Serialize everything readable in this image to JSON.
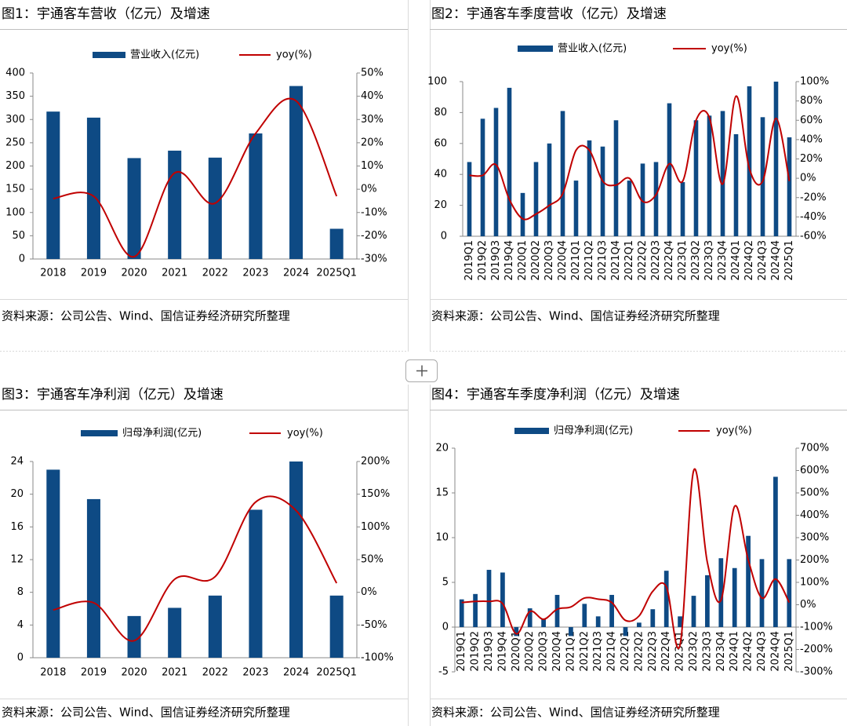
{
  "chart_data": [
    {
      "type": "bar_line",
      "title": "图1：宇通客车营收（亿元）及增速",
      "source": "资料来源：公司公告、Wind、国信证券经济研究所整理",
      "categories": [
        "2018",
        "2019",
        "2020",
        "2021",
        "2022",
        "2023",
        "2024",
        "2025Q1"
      ],
      "series": [
        {
          "name": "营业收入(亿元)",
          "type": "bar",
          "color": "#0e4a84",
          "values": [
            317,
            304,
            217,
            233,
            218,
            270,
            372,
            65
          ]
        },
        {
          "name": "yoy(%)",
          "type": "line",
          "axis": "y2",
          "color": "#c00000",
          "values": [
            -4,
            -3,
            -29,
            7,
            -6,
            24,
            38,
            -3
          ]
        }
      ],
      "ylim": [
        0,
        400
      ],
      "yticks": [
        0,
        50,
        100,
        150,
        200,
        250,
        300,
        350,
        400
      ],
      "y2lim": [
        -30,
        50
      ],
      "y2ticks": [
        {
          "value": -30,
          "label": "-30%"
        },
        {
          "value": -20,
          "label": "-20%"
        },
        {
          "value": -10,
          "label": "-10%"
        },
        {
          "value": 0,
          "label": "0%"
        },
        {
          "value": 10,
          "label": "10%"
        },
        {
          "value": 20,
          "label": "20%"
        },
        {
          "value": 30,
          "label": "30%"
        },
        {
          "value": 40,
          "label": "40%"
        },
        {
          "value": 50,
          "label": "50%"
        }
      ]
    },
    {
      "type": "bar_line",
      "title": "图2：宇通客车季度营收（亿元）及增速",
      "source": "资料来源：公司公告、Wind、国信证券经济研究所整理",
      "categories": [
        "2019Q1",
        "2019Q2",
        "2019Q3",
        "2019Q4",
        "2020Q1",
        "2020Q2",
        "2020Q3",
        "2020Q4",
        "2021Q1",
        "2021Q2",
        "2021Q3",
        "2021Q4",
        "2022Q1",
        "2022Q2",
        "2022Q3",
        "2022Q4",
        "2023Q1",
        "2023Q2",
        "2023Q3",
        "2023Q4",
        "2024Q1",
        "2024Q2",
        "2024Q3",
        "2024Q4",
        "2025Q1"
      ],
      "series": [
        {
          "name": "营业收入(亿元)",
          "type": "bar",
          "color": "#0e4a84",
          "values": [
            48,
            76,
            83,
            96,
            28,
            48,
            60,
            81,
            36,
            62,
            58,
            75,
            36,
            47,
            48,
            86,
            35,
            75,
            78,
            81,
            66,
            97,
            77,
            100,
            64
          ]
        },
        {
          "name": "yoy(%)",
          "type": "line",
          "axis": "y2",
          "color": "#c00000",
          "values": [
            3,
            3,
            14,
            -22,
            -42,
            -37,
            -28,
            -16,
            29,
            29,
            -3,
            -7,
            0,
            -24,
            -17,
            15,
            -3,
            60,
            63,
            -6,
            85,
            10,
            -3,
            62,
            -3
          ]
        }
      ],
      "ylim": [
        0,
        100
      ],
      "yticks": [
        0,
        20,
        40,
        60,
        80,
        100
      ],
      "y2lim": [
        -60,
        100
      ],
      "y2ticks": [
        {
          "value": -60,
          "label": "-60%"
        },
        {
          "value": -40,
          "label": "-40%"
        },
        {
          "value": -20,
          "label": "-20%"
        },
        {
          "value": 0,
          "label": "0%"
        },
        {
          "value": 20,
          "label": "20%"
        },
        {
          "value": 40,
          "label": "40%"
        },
        {
          "value": 60,
          "label": "60%"
        },
        {
          "value": 80,
          "label": "80%"
        },
        {
          "value": 100,
          "label": "100%"
        }
      ]
    },
    {
      "type": "bar_line",
      "title": "图3：宇通客车净利润（亿元）及增速",
      "source": "资料来源：公司公告、Wind、国信证券经济研究所整理",
      "categories": [
        "2018",
        "2019",
        "2020",
        "2021",
        "2022",
        "2023",
        "2024",
        "2025Q1"
      ],
      "series": [
        {
          "name": "归母净利润(亿元)",
          "type": "bar",
          "color": "#0e4a84",
          "values": [
            23,
            19.4,
            5.1,
            6.1,
            7.6,
            18.1,
            24,
            7.6
          ]
        },
        {
          "name": "yoy(%)",
          "type": "line",
          "axis": "y2",
          "color": "#c00000",
          "values": [
            -27,
            -16,
            -74,
            20,
            24,
            138,
            125,
            14
          ]
        }
      ],
      "ylim": [
        0,
        24
      ],
      "yticks": [
        0,
        4,
        8,
        12,
        16,
        20,
        24
      ],
      "y2lim": [
        -100,
        200
      ],
      "y2ticks": [
        {
          "value": -100,
          "label": "-100%"
        },
        {
          "value": -50,
          "label": "-50%"
        },
        {
          "value": 0,
          "label": "0%"
        },
        {
          "value": 50,
          "label": "50%"
        },
        {
          "value": 100,
          "label": "100%"
        },
        {
          "value": 150,
          "label": "150%"
        },
        {
          "value": 200,
          "label": "200%"
        }
      ]
    },
    {
      "type": "bar_line",
      "title": "图4：宇通客车季度净利润（亿元）及增速",
      "source": "资料来源：公司公告、Wind、国信证券经济研究所整理",
      "categories": [
        "2019Q1",
        "2019Q2",
        "2019Q3",
        "2019Q4",
        "2020Q1",
        "2020Q2",
        "2020Q3",
        "2020Q4",
        "2021Q1",
        "2021Q2",
        "2021Q3",
        "2021Q4",
        "2022Q1",
        "2022Q2",
        "2022Q3",
        "2022Q4",
        "2023Q1",
        "2023Q2",
        "2023Q3",
        "2023Q4",
        "2024Q1",
        "2024Q2",
        "2024Q3",
        "2024Q4",
        "2025Q1"
      ],
      "series": [
        {
          "name": "归母净利润(亿元)",
          "type": "bar",
          "color": "#0e4a84",
          "values": [
            3.1,
            3.7,
            6.4,
            6.1,
            -1.0,
            2.1,
            0.9,
            3.6,
            -1.0,
            2.6,
            1.2,
            3.6,
            -1.0,
            0.5,
            2.0,
            6.3,
            1.2,
            3.5,
            5.8,
            7.7,
            6.6,
            10.2,
            7.6,
            16.8,
            7.6
          ]
        },
        {
          "name": "yoy(%)",
          "type": "line",
          "axis": "y2",
          "color": "#c00000",
          "values": [
            10,
            15,
            15,
            5,
            -130,
            -30,
            -65,
            -20,
            -10,
            30,
            25,
            10,
            -70,
            -50,
            60,
            80,
            -180,
            600,
            190,
            20,
            440,
            200,
            30,
            115,
            10
          ]
        }
      ],
      "ylim": [
        -5,
        20
      ],
      "yticks": [
        -5,
        0,
        5,
        10,
        15,
        20
      ],
      "y2lim": [
        -300,
        700
      ],
      "y2ticks": [
        {
          "value": -300,
          "label": "-300%"
        },
        {
          "value": -200,
          "label": "-200%"
        },
        {
          "value": -100,
          "label": "-100%"
        },
        {
          "value": 0,
          "label": "0%"
        },
        {
          "value": 100,
          "label": "100%"
        },
        {
          "value": 200,
          "label": "200%"
        },
        {
          "value": 300,
          "label": "300%"
        },
        {
          "value": 400,
          "label": "400%"
        },
        {
          "value": 500,
          "label": "500%"
        },
        {
          "value": 600,
          "label": "600%"
        },
        {
          "value": 700,
          "label": "700%"
        }
      ]
    }
  ]
}
